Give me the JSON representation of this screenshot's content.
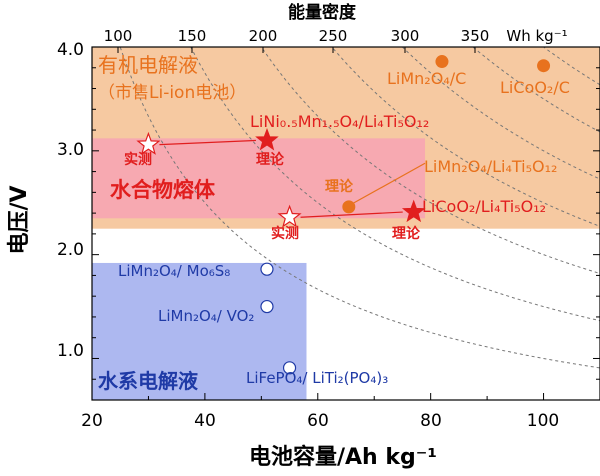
{
  "chart_data": {
    "type": "scatter",
    "xlabel": "电池容量/Ah kg⁻¹",
    "ylabel": "电压/V",
    "top_axis_label": "能量密度",
    "xlim": [
      20,
      110
    ],
    "ylim": [
      0.6,
      4.0
    ],
    "x_ticks": [
      "20",
      "40",
      "60",
      "80",
      "100"
    ],
    "y_ticks": [
      "1.0",
      "2.0",
      "3.0",
      "4.0"
    ],
    "top_ticks": [
      "100",
      "150",
      "200",
      "250",
      "300",
      "350"
    ],
    "top_unit": "Wh kg⁻¹",
    "energy_curves_wh_per_kg": [
      100,
      150,
      200,
      250,
      300,
      350,
      400
    ],
    "regions": [
      {
        "label_line1": "有机电解液",
        "label_line2": "（市售Li-ion电池）",
        "x": [
          20,
          110
        ],
        "y": [
          2.25,
          4.0
        ],
        "color": "#f6c9a1"
      },
      {
        "label_line1": "水合物熔体",
        "x": [
          20,
          79
        ],
        "y": [
          2.35,
          3.12
        ],
        "color": "#f7a8b2"
      },
      {
        "label_line1": "水系电解液",
        "x": [
          20,
          58
        ],
        "y": [
          0.6,
          1.92
        ],
        "color": "#adb8f0"
      }
    ],
    "series": [
      {
        "group": "organic",
        "color": "#e8721e",
        "points": [
          {
            "x": 82,
            "y": 3.86,
            "label": "LiMn₂O₄/C"
          },
          {
            "x": 100,
            "y": 3.82,
            "label": "LiCoO₂/C"
          },
          {
            "x": 65.5,
            "y": 2.46,
            "label": "理论"
          }
        ],
        "extra_labels": [
          "LiMn₂O₄/Li₄Ti₅O₁₂"
        ]
      },
      {
        "group": "hydrate-melt",
        "color": "#e11e1e",
        "points": [
          {
            "x": 30,
            "y": 3.06,
            "marker": "hollow-star",
            "label": "实测"
          },
          {
            "x": 51,
            "y": 3.1,
            "marker": "star",
            "label": "理论"
          },
          {
            "x": 55,
            "y": 2.36,
            "marker": "hollow-star",
            "label": "实测"
          },
          {
            "x": 77,
            "y": 2.41,
            "marker": "star",
            "label": "理论"
          }
        ],
        "extra_labels": [
          "LiNi₀.₅Mn₁.₅O₄/Li₄Ti₅O₁₂",
          "LiCoO₂/Li₄Ti₅O₁₂"
        ]
      },
      {
        "group": "aqueous",
        "color": "#1f3aa6",
        "points": [
          {
            "x": 51,
            "y": 1.86,
            "label": "LiMn₂O₄/ Mo₆S₈"
          },
          {
            "x": 51,
            "y": 1.5,
            "label": "LiMn₂O₄/ VO₂"
          },
          {
            "x": 55,
            "y": 0.91,
            "label": "LiFePO₄/ LiTi₂(PO₄)₃"
          }
        ]
      }
    ]
  },
  "text": {
    "organic_title1": "有机电解液",
    "organic_title2": "（市售Li-ion电池）",
    "hydrate_title": "水合物熔体",
    "aqueous_title": "水系电解液",
    "lnmo_label": "LiNi₀.₅Mn₁.₅O₄/Li₄Ti₅O₁₂",
    "lmo_lto_label": "LiMn₂O₄/Li₄Ti₅O₁₂",
    "lco_lto_label": "LiCoO₂/Li₄Ti₅O₁₂",
    "lmo_c_label": "LiMn₂O₄/C",
    "lco_c_label": "LiCoO₂/C",
    "lmo_mos_label": "LiMn₂O₄/ Mo₆S₈",
    "lmo_vo2_label": "LiMn₂O₄/ VO₂",
    "lfp_label": "LiFePO₄/ LiTi₂(PO₄)₃",
    "measured": "实测",
    "theory": "理论"
  }
}
